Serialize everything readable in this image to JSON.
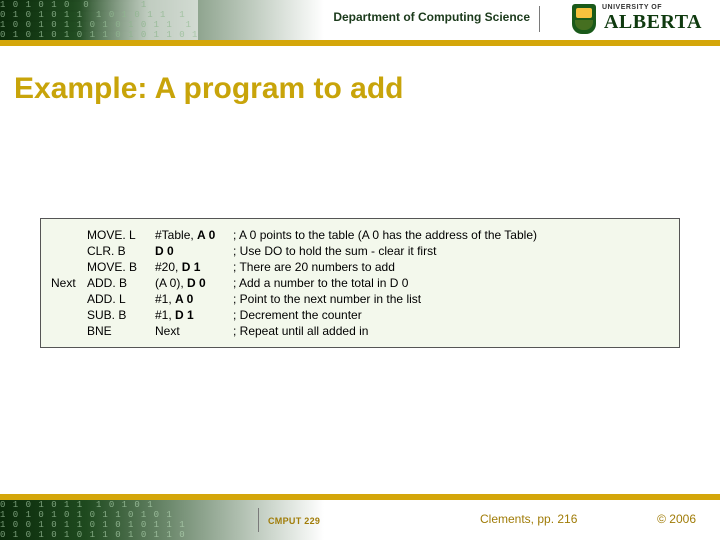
{
  "header": {
    "department": "Department of Computing Science",
    "university_prefix": "UNIVERSITY OF",
    "university_name": "ALBERTA",
    "binary_art": "1 0 1 0 1 0  0        1\n0 1 0 1 0 1 1  1 0 1 0 1 1  1\n1 0 0 1 0 1 1 0 1 0 1 0 1 1  1\n0 1 0 1 0 1 0 1 1 0 1 0 1 1 0 1"
  },
  "title": "Example: A program to add",
  "code": {
    "rows": [
      {
        "label": "",
        "op": "MOVE. L",
        "arg_pre": "#Table, ",
        "arg_b": "A 0",
        "arg_post": "",
        "cmt": " ; A 0 points to the table (A 0 has the address of the Table)"
      },
      {
        "label": "",
        "op": "CLR. B",
        "arg_pre": "",
        "arg_b": "D 0",
        "arg_post": "",
        "cmt": "; Use DO to hold the sum - clear it first"
      },
      {
        "label": "",
        "op": "MOVE. B",
        "arg_pre": "#20, ",
        "arg_b": "D 1",
        "arg_post": "",
        "cmt": "; There are 20 numbers to add"
      },
      {
        "label": "Next",
        "op": "ADD. B",
        "arg_pre": "(A 0), ",
        "arg_b": "D 0",
        "arg_post": "",
        "cmt": "; Add a number to the total in D 0"
      },
      {
        "label": "",
        "op": "ADD. L",
        "arg_pre": "#1, ",
        "arg_b": "A 0",
        "arg_post": "",
        "cmt": "; Point to the next number in the list"
      },
      {
        "label": "",
        "op": "SUB. B",
        "arg_pre": "#1, ",
        "arg_b": "D 1",
        "arg_post": "",
        "cmt": "; Decrement the counter"
      },
      {
        "label": "",
        "op": "BNE",
        "arg_pre": "Next",
        "arg_b": "",
        "arg_post": "",
        "cmt": "; Repeat until all added in"
      }
    ]
  },
  "footer": {
    "course": "CMPUT 229",
    "reference": "Clements, pp. 216",
    "copyright": "© 2006",
    "binary_art": "0 1 0 1 0 1 1  1 0 1 0 1\n1 0 1 0 1 0 1 0 1 1 0 1 0 1\n1 0 0 1 0 1 1 0 1 0 1 0 1 1 1\n0 1 0 1 0 1 0 1 1 0 1 0 1 1 0"
  },
  "colors": {
    "gold": "#d4a60a",
    "title": "#c8a40a",
    "dark_green": "#0a2a0a",
    "mid_green": "#1f4a1f",
    "code_bg": "#f3f8ec",
    "footer_text": "#a07c08"
  }
}
